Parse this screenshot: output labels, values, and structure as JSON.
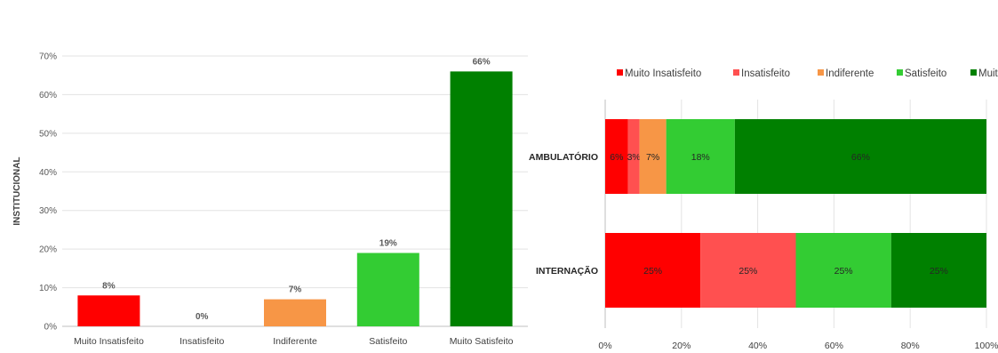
{
  "chart_data": [
    {
      "type": "bar",
      "ylabel": "INSTITUCIONAL",
      "categories": [
        "Muito Insatisfeito",
        "Insatisfeito",
        "Indiferente",
        "Satisfeito",
        "Muito Satisfeito"
      ],
      "values": [
        8,
        0,
        7,
        19,
        66
      ],
      "value_labels": [
        "8%",
        "0%",
        "7%",
        "19%",
        "66%"
      ],
      "colors": [
        "#ff0000",
        "#ff5050",
        "#f79646",
        "#33cc33",
        "#008000"
      ],
      "ylim": [
        0,
        70
      ],
      "yticks": [
        "0%",
        "10%",
        "20%",
        "30%",
        "40%",
        "50%",
        "60%",
        "70%"
      ],
      "grid": true
    },
    {
      "type": "bar",
      "orientation": "horizontal",
      "stacked": true,
      "legend_position": "top",
      "categories": [
        "AMBULATÓRIO",
        "INTERNAÇÃO"
      ],
      "series": [
        {
          "name": "Muito Insatisfeito",
          "color": "#ff0000",
          "values": [
            6,
            25
          ],
          "labels": [
            "6%",
            "25%"
          ]
        },
        {
          "name": "Insatisfeito",
          "color": "#ff5050",
          "values": [
            3,
            25
          ],
          "labels": [
            "3%",
            "25%"
          ]
        },
        {
          "name": "Indiferente",
          "color": "#f79646",
          "values": [
            7,
            0
          ],
          "labels": [
            "7%",
            ""
          ]
        },
        {
          "name": "Satisfeito",
          "color": "#33cc33",
          "values": [
            18,
            25
          ],
          "labels": [
            "18%",
            "25%"
          ]
        },
        {
          "name": "Muito Satisfeito",
          "color": "#008000",
          "values": [
            66,
            25
          ],
          "labels": [
            "66%",
            "25%"
          ]
        }
      ],
      "xlim": [
        0,
        100
      ],
      "xticks": [
        "0%",
        "20%",
        "40%",
        "60%",
        "80%",
        "100%"
      ],
      "grid": true
    }
  ]
}
